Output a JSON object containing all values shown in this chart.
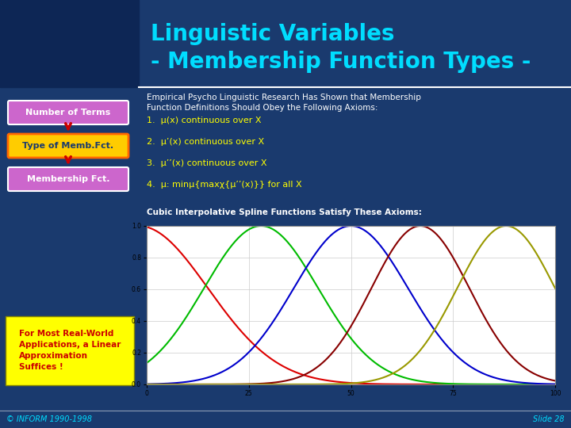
{
  "bg_color": "#1a3a6e",
  "title_line1": "Linguistic Variables",
  "title_line2": "- Membership Function Types -",
  "title_color": "#00ddff",
  "title_fontsize": 20,
  "header_separator_color": "#ffffff",
  "box1_text": "Number of Terms",
  "box1_bg": "#cc66cc",
  "box1_border": "#ffffff",
  "box2_text": "Type of Memb.Fct.",
  "box2_bg": "#ffcc00",
  "box2_border": "#ff6600",
  "box3_text": "Membership Fct.",
  "box3_bg": "#cc66cc",
  "box3_border": "#ffffff",
  "arrow_color": "#cc0000",
  "right_text_color": "#ffffff",
  "right_title": "Empirical Psycho Linguistic Research Has Shown that Membership\nFunction Definitions Should Obey the Following Axioms:",
  "axioms": [
    "1.  μ(x) continuous over X",
    "2.  μ’(x) continuous over X",
    "3.  μ’’(x) continuous over X",
    "4.  μ: minμ{maxχ{μ’’(x)}} for all X"
  ],
  "axiom_colors": [
    "#ffff00",
    "#ffff00",
    "#ffff00",
    "#ffff00"
  ],
  "cubic_label": "Cubic Interpolative Spline Functions Satisfy These Axioms:",
  "cubic_label_color": "#ffffff",
  "bottom_left_text": "For Most Real-World\nApplications, a Linear\nApproximation\nSuffices !",
  "bottom_left_bg": "#ffff00",
  "bottom_left_text_color": "#cc0000",
  "footer_text_left": "© INFORM 1990-1998",
  "footer_text_right": "Slide 28",
  "footer_color": "#00ddff",
  "plot_xlim": [
    0,
    100
  ],
  "plot_ylim": [
    0,
    1.0
  ],
  "plot_xticks": [
    0.0,
    25.0,
    50.0,
    75.0,
    100.0
  ],
  "plot_yticks": [
    0.0,
    0.2,
    0.4,
    0.6,
    0.8,
    1.0
  ],
  "plot_bg": "#ffffff",
  "plot_grid_color": "#cccccc",
  "logo_bg": "#0d2655"
}
